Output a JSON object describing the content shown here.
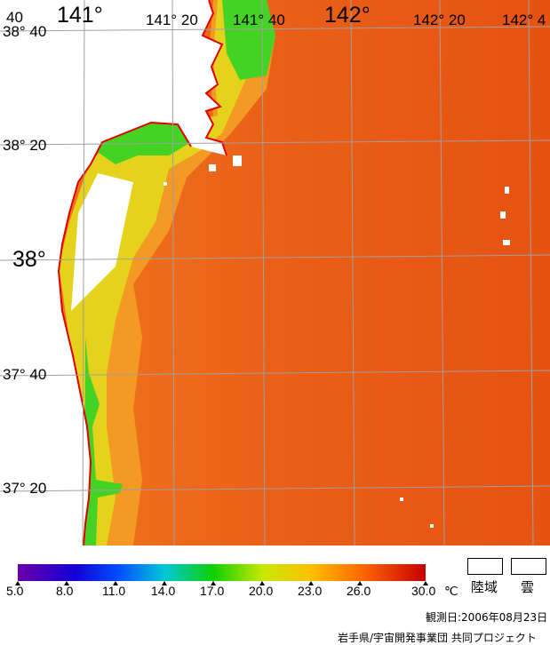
{
  "lat_labels": [
    {
      "id": "38-40",
      "text": "38° 40"
    },
    {
      "id": "38-20",
      "text": "38° 20"
    },
    {
      "id": "38",
      "text": "38°"
    },
    {
      "id": "37-40",
      "text": "37° 40"
    },
    {
      "id": "37-20",
      "text": "37° 20"
    }
  ],
  "lon_labels": [
    {
      "id": "140-40",
      "text": "40"
    },
    {
      "id": "141",
      "text": "141°"
    },
    {
      "id": "141-20",
      "text": "141° 20"
    },
    {
      "id": "141-40",
      "text": "141° 40"
    },
    {
      "id": "142",
      "text": "142°"
    },
    {
      "id": "142-20",
      "text": "142° 20"
    },
    {
      "id": "142-40",
      "text": "142° 4"
    }
  ],
  "colorbar": {
    "ticks": [
      "5.0",
      "8.0",
      "11.0",
      "14.0",
      "17.0",
      "20.0",
      "23.0",
      "26.0",
      "30.0"
    ],
    "unit": "℃",
    "range": [
      5.0,
      30.0
    ]
  },
  "legend": {
    "land": "陸域",
    "cloud": "雲"
  },
  "observation_date": "観測日:2006年08月23日",
  "credit": "岩手県/宇宙開発事業団 共同プロジェクト",
  "colors": {
    "coastline": "#e00000",
    "grid": "#a0a0a0",
    "land": "#ffffff",
    "cloud": "#ffffff"
  }
}
